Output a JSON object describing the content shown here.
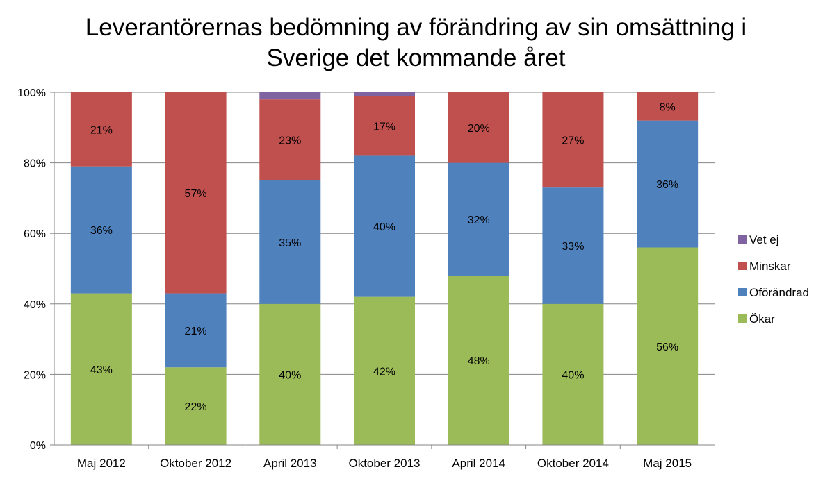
{
  "chart_data": {
    "type": "bar",
    "stacked": true,
    "title_lines": [
      "Leverantörernas bedömning av förändring av sin omsättning i",
      "Sverige det kommande året"
    ],
    "categories": [
      "Maj 2012",
      "Oktober 2012",
      "April 2013",
      "Oktober 2013",
      "April 2014",
      "Oktober 2014",
      "Maj 2015"
    ],
    "series": [
      {
        "name": "Ökar",
        "color": "#9BBB59",
        "values": [
          43,
          22,
          40,
          42,
          48,
          40,
          56
        ],
        "labels": [
          "43%",
          "22%",
          "40%",
          "42%",
          "48%",
          "40%",
          "56%"
        ]
      },
      {
        "name": "Oförändrad",
        "color": "#4F81BD",
        "values": [
          36,
          21,
          35,
          40,
          32,
          33,
          36
        ],
        "labels": [
          "36%",
          "21%",
          "35%",
          "40%",
          "32%",
          "33%",
          "36%"
        ]
      },
      {
        "name": "Minskar",
        "color": "#C0504D",
        "values": [
          21,
          57,
          23,
          17,
          20,
          27,
          8
        ],
        "labels": [
          "21%",
          "57%",
          "23%",
          "17%",
          "20%",
          "27%",
          "8%"
        ]
      },
      {
        "name": "Vet ej",
        "color": "#8064A2",
        "values": [
          0,
          0,
          2,
          1,
          0,
          0,
          0
        ],
        "labels": [
          "",
          "",
          "",
          "",
          "",
          "",
          ""
        ]
      }
    ],
    "y_ticks": [
      "0%",
      "20%",
      "40%",
      "60%",
      "80%",
      "100%"
    ],
    "ylim": [
      0,
      100
    ],
    "grid": true,
    "legend_position": "right",
    "legend_order": [
      "Vet ej",
      "Minskar",
      "Oförändrad",
      "Ökar"
    ]
  }
}
